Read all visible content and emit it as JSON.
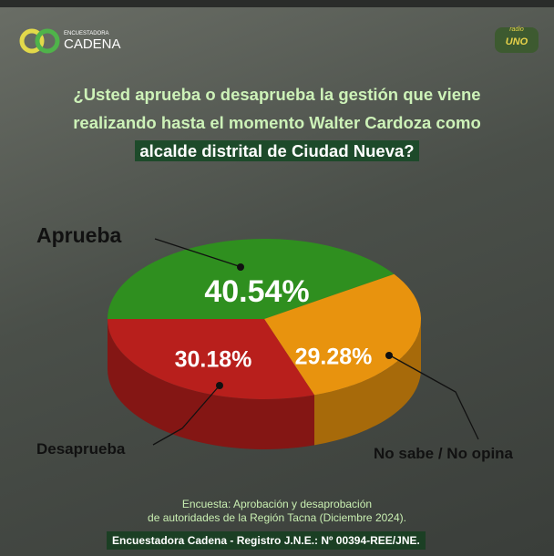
{
  "header": {
    "logo_small": "ENCUESTADORA",
    "logo": "CADENA",
    "radio": "radio",
    "radio_name": "UNO"
  },
  "chart_data": {
    "type": "pie",
    "title": "¿Usted aprueba o desaprueba la gestión que viene realizando hasta el momento Walter Cardoza como",
    "title_highlight": "alcalde distrital de Ciudad Nueva?",
    "categories": [
      "Aprueba",
      "No sabe / No opina",
      "Desaprueba"
    ],
    "values": [
      40.54,
      29.28,
      30.18
    ],
    "value_labels": [
      "40.54%",
      "29.28%",
      "30.18%"
    ],
    "colors": [
      "#2f8f1f",
      "#e8930e",
      "#b81f1c"
    ]
  },
  "footer": {
    "note": [
      "Encuesta: Aprobación y desaprobación",
      "de autoridades de la Región Tacna (Diciembre 2024)."
    ],
    "registry": "Encuestadora Cadena - Registro J.N.E.: Nº 00394-REE/JNE."
  }
}
